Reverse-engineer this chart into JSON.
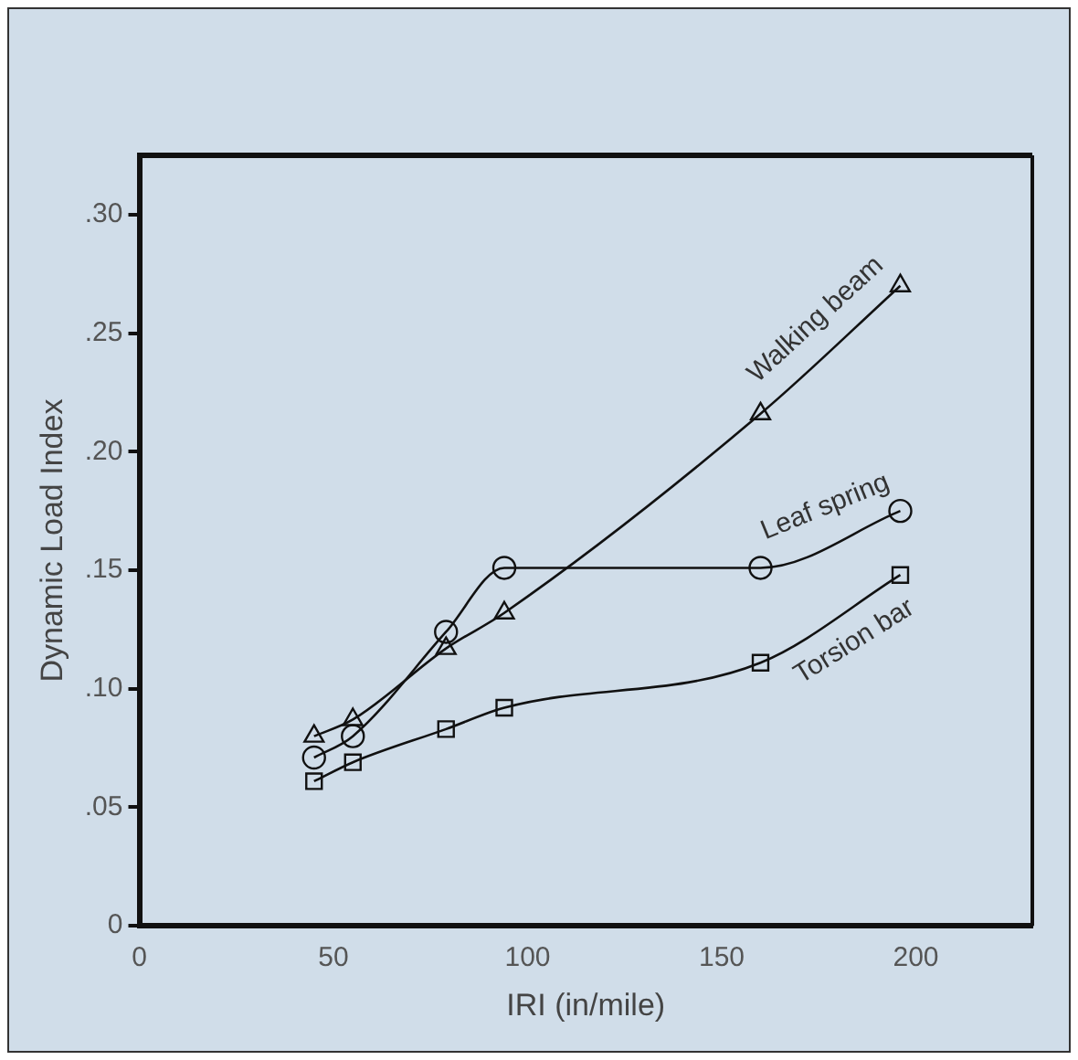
{
  "chart_data": {
    "type": "line",
    "xlabel": "IRI (in/mile)",
    "ylabel": "Dynamic Load Index",
    "x": [
      45,
      55,
      79,
      94,
      160,
      196
    ],
    "series": [
      {
        "name": "Walking beam",
        "color": "#111111",
        "marker": "triangle",
        "values": [
          0.08,
          0.087,
          0.117,
          0.132,
          0.216,
          0.27
        ]
      },
      {
        "name": "Leaf spring",
        "color": "#111111",
        "marker": "circle",
        "values": [
          0.071,
          0.08,
          0.124,
          0.151,
          0.151,
          0.175
        ]
      },
      {
        "name": "Torsion bar",
        "color": "#111111",
        "marker": "square",
        "values": [
          0.061,
          0.069,
          0.083,
          0.092,
          0.111,
          0.148
        ]
      }
    ],
    "xlim": [
      0,
      230
    ],
    "xticks": [
      0,
      50,
      100,
      150,
      200
    ],
    "ylim": [
      0,
      0.325
    ],
    "yticks": [
      0,
      {
        "value": 0.05,
        "label": ".05"
      },
      {
        "value": 0.1,
        "label": ".10"
      },
      {
        "value": 0.15,
        "label": ".15"
      },
      {
        "value": 0.2,
        "label": ".20"
      },
      {
        "value": 0.25,
        "label": ".25"
      },
      {
        "value": 0.3,
        "label": ".30"
      }
    ],
    "grid": false,
    "legend": false
  }
}
